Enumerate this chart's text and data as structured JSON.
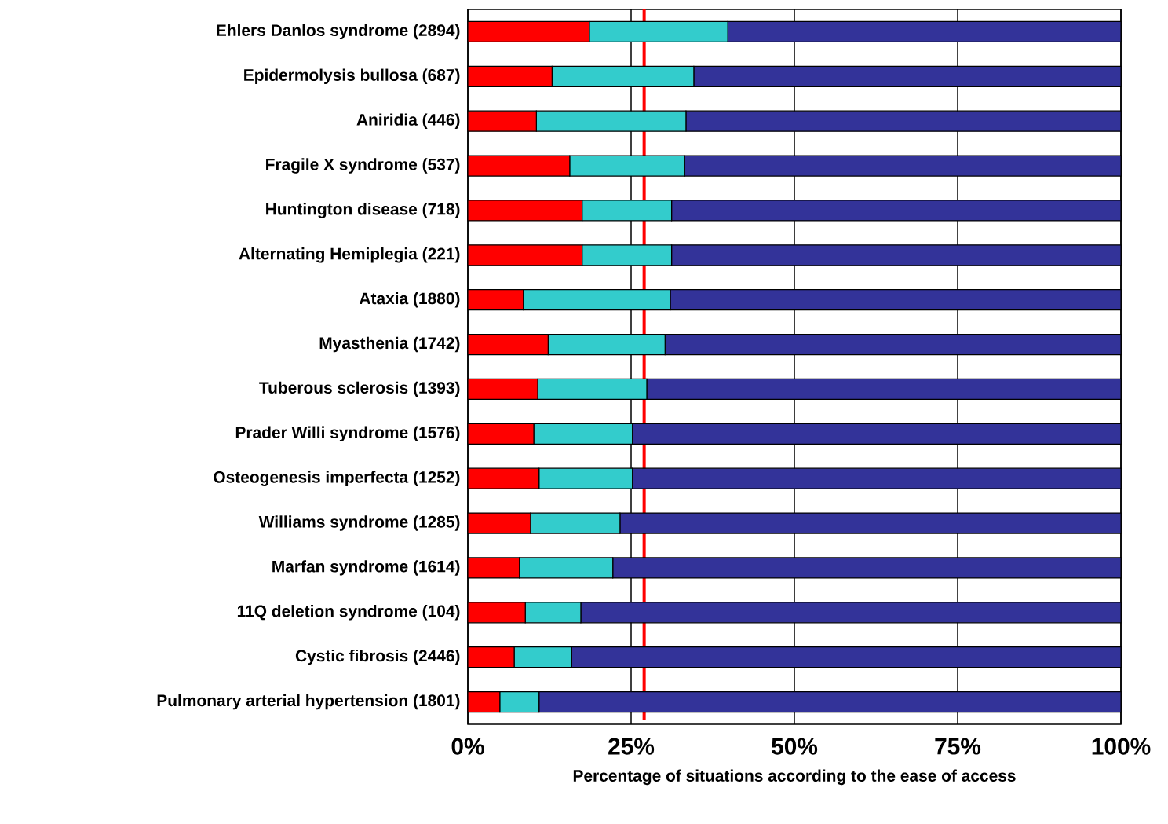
{
  "chart_data": {
    "type": "bar",
    "orientation": "horizontal",
    "stacked": true,
    "xlabel": "Percentage of situations according to the ease of access",
    "categories": [
      "Ehlers Danlos syndrome (2894)",
      "Epidermolysis bullosa (687)",
      "Aniridia (446)",
      "Fragile X syndrome (537)",
      "Huntington disease (718)",
      "Alternating Hemiplegia (221)",
      "Ataxia (1880)",
      "Myasthenia (1742)",
      "Tuberous sclerosis (1393)",
      "Prader Willi syndrome (1576)",
      "Osteogenesis imperfecta (1252)",
      "Williams syndrome (1285)",
      "Marfan syndrome (1614)",
      "11Q deletion syndrome (104)",
      "Cystic fibrosis (2446)",
      "Pulmonary arterial hypertension (1801)"
    ],
    "series": [
      {
        "color": "#ff0000",
        "values": [
          18.6,
          12.9,
          10.5,
          15.6,
          17.5,
          17.5,
          8.5,
          12.3,
          10.7,
          10.1,
          10.9,
          9.6,
          7.9,
          8.8,
          7.1,
          4.9
        ]
      },
      {
        "color": "#33cccc",
        "values": [
          21.2,
          21.7,
          22.9,
          17.6,
          13.7,
          13.7,
          22.5,
          17.9,
          16.7,
          15.1,
          14.3,
          13.7,
          14.3,
          8.5,
          8.8,
          6.0
        ]
      },
      {
        "color": "#333399",
        "values": [
          60.2,
          65.4,
          66.6,
          66.8,
          68.8,
          68.8,
          69.0,
          69.8,
          72.6,
          74.8,
          74.8,
          76.7,
          77.8,
          82.7,
          84.1,
          89.1
        ]
      }
    ],
    "xlim": [
      0,
      100
    ],
    "xticks": [
      {
        "value": 0,
        "label": "0%"
      },
      {
        "value": 25,
        "label": "25%"
      },
      {
        "value": 50,
        "label": "50%"
      },
      {
        "value": 75,
        "label": "75%"
      },
      {
        "value": 100,
        "label": "100%"
      }
    ],
    "grid": "x",
    "ref_lines": [
      {
        "axis": "x",
        "value": 27,
        "color": "#ff0000"
      }
    ]
  }
}
